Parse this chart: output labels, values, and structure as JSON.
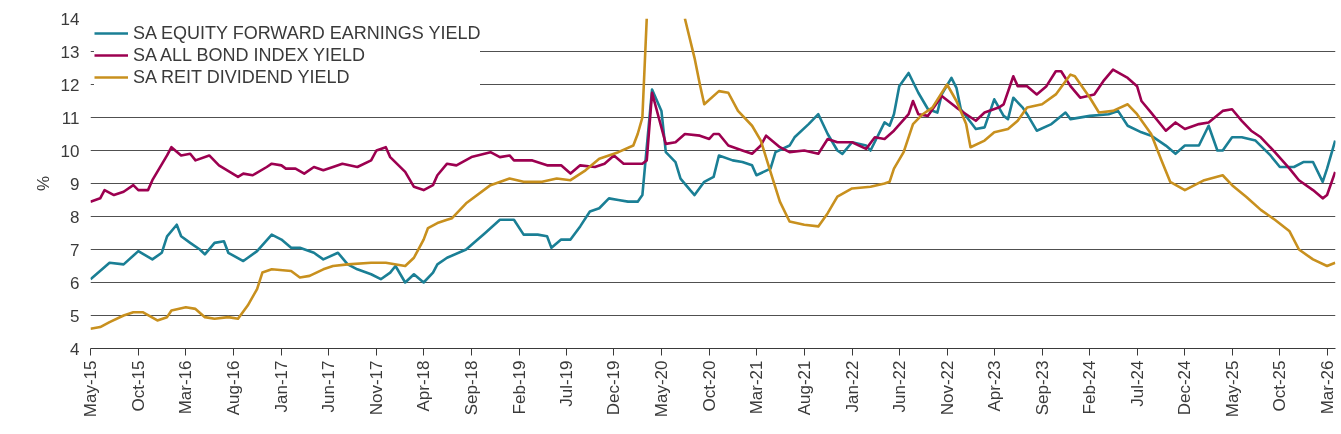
{
  "chart_data": {
    "type": "line",
    "ylabel": "%",
    "ylim": [
      4,
      14
    ],
    "yticks": [
      4,
      5,
      6,
      7,
      8,
      9,
      10,
      11,
      12,
      13,
      14
    ],
    "xlim": [
      "2015-05-01",
      "2026-03-28"
    ],
    "xticks": [
      {
        "value": "2015-05-01",
        "label": "May-15"
      },
      {
        "value": "2015-10-01",
        "label": "Oct-15"
      },
      {
        "value": "2016-03-01",
        "label": "Mar-16"
      },
      {
        "value": "2016-08-01",
        "label": "Aug-16"
      },
      {
        "value": "2017-01-01",
        "label": "Jan-17"
      },
      {
        "value": "2017-06-01",
        "label": "Jun-17"
      },
      {
        "value": "2017-11-01",
        "label": "Nov-17"
      },
      {
        "value": "2018-04-01",
        "label": "Apr-18"
      },
      {
        "value": "2018-09-01",
        "label": "Sep-18"
      },
      {
        "value": "2019-02-01",
        "label": "Feb-19"
      },
      {
        "value": "2019-07-01",
        "label": "Jul-19"
      },
      {
        "value": "2019-12-01",
        "label": "Dec-19"
      },
      {
        "value": "2020-05-01",
        "label": "May-20"
      },
      {
        "value": "2020-10-01",
        "label": "Oct-20"
      },
      {
        "value": "2021-03-01",
        "label": "Mar-21"
      },
      {
        "value": "2021-08-01",
        "label": "Aug-21"
      },
      {
        "value": "2022-01-01",
        "label": "Jan-22"
      },
      {
        "value": "2022-06-01",
        "label": "Jun-22"
      },
      {
        "value": "2022-11-01",
        "label": "Nov-22"
      },
      {
        "value": "2023-04-01",
        "label": "Apr-23"
      },
      {
        "value": "2023-09-01",
        "label": "Sep-23"
      },
      {
        "value": "2024-02-01",
        "label": "Feb-24"
      },
      {
        "value": "2024-07-01",
        "label": "Jul-24"
      },
      {
        "value": "2024-12-01",
        "label": "Dec-24"
      },
      {
        "value": "2025-05-01",
        "label": "May-25"
      },
      {
        "value": "2025-10-01",
        "label": "Oct-25"
      },
      {
        "value": "2026-03-01",
        "label": "Mar-26"
      }
    ],
    "grid": "y",
    "legend": "top left",
    "series": [
      {
        "name": "SA EQUITY FORWARD EARNINGS YIELD",
        "color": "#1a7f95",
        "x": [
          "2015-05-01",
          "2015-07-01",
          "2015-08-15",
          "2015-10-01",
          "2015-11-15",
          "2015-12-15",
          "2016-01-01",
          "2016-02-01",
          "2016-02-15",
          "2016-03-15",
          "2016-04-15",
          "2016-05-01",
          "2016-06-01",
          "2016-07-01",
          "2016-07-15",
          "2016-09-01",
          "2016-10-15",
          "2016-12-01",
          "2017-01-01",
          "2017-02-01",
          "2017-03-01",
          "2017-04-15",
          "2017-05-15",
          "2017-07-01",
          "2017-08-01",
          "2017-09-01",
          "2017-10-15",
          "2017-11-15",
          "2017-12-15",
          "2018-01-01",
          "2018-02-01",
          "2018-03-01",
          "2018-04-01",
          "2018-05-01",
          "2018-05-15",
          "2018-06-15",
          "2018-08-15",
          "2018-10-15",
          "2018-12-01",
          "2019-01-15",
          "2019-02-15",
          "2019-04-01",
          "2019-05-01",
          "2019-05-15",
          "2019-06-15",
          "2019-07-15",
          "2019-08-15",
          "2019-09-15",
          "2019-10-15",
          "2019-11-15",
          "2019-12-15",
          "2020-01-15",
          "2020-02-15",
          "2020-03-01",
          "2020-03-15",
          "2020-04-01",
          "2020-05-01",
          "2020-05-15",
          "2020-06-15",
          "2020-07-01",
          "2020-08-01",
          "2020-08-15",
          "2020-09-15",
          "2020-10-15",
          "2020-11-01",
          "2020-12-15",
          "2021-01-15",
          "2021-02-15",
          "2021-03-01",
          "2021-04-15",
          "2021-05-01",
          "2021-06-15",
          "2021-07-01",
          "2021-08-15",
          "2021-09-15",
          "2021-10-15",
          "2021-11-15",
          "2021-12-01",
          "2022-01-01",
          "2022-02-15",
          "2022-03-01",
          "2022-04-15",
          "2022-05-01",
          "2022-05-15",
          "2022-06-01",
          "2022-07-01",
          "2022-08-01",
          "2022-09-01",
          "2022-10-01",
          "2022-10-15",
          "2022-11-15",
          "2022-12-01",
          "2022-12-15",
          "2023-02-01",
          "2023-03-01",
          "2023-04-01",
          "2023-05-01",
          "2023-05-15",
          "2023-06-01",
          "2023-07-01",
          "2023-07-15",
          "2023-08-15",
          "2023-10-01",
          "2023-11-15",
          "2023-12-01",
          "2024-02-01",
          "2024-04-01",
          "2024-05-01",
          "2024-06-01",
          "2024-07-15",
          "2024-08-15",
          "2024-10-01",
          "2024-11-01",
          "2024-12-01",
          "2025-01-15",
          "2025-02-15",
          "2025-03-15",
          "2025-04-01",
          "2025-05-01",
          "2025-06-01",
          "2025-07-15",
          "2025-09-01",
          "2025-10-01",
          "2025-11-15",
          "2025-12-15",
          "2026-01-15",
          "2026-02-15",
          "2026-03-01",
          "2026-03-27"
        ],
        "values": [
          6.1,
          6.6,
          6.55,
          6.95,
          6.7,
          6.9,
          7.4,
          7.75,
          7.4,
          7.2,
          7.0,
          6.85,
          7.2,
          7.25,
          6.9,
          6.65,
          6.95,
          7.45,
          7.3,
          7.05,
          7.05,
          6.9,
          6.7,
          6.9,
          6.55,
          6.4,
          6.25,
          6.1,
          6.3,
          6.5,
          6.0,
          6.25,
          6.0,
          6.3,
          6.55,
          6.75,
          7.0,
          7.5,
          7.9,
          7.9,
          7.45,
          7.45,
          7.4,
          7.05,
          7.3,
          7.3,
          7.7,
          8.15,
          8.25,
          8.55,
          8.5,
          8.45,
          8.45,
          8.65,
          10.1,
          11.85,
          11.2,
          9.95,
          9.65,
          9.15,
          8.8,
          8.65,
          9.05,
          9.2,
          9.85,
          9.7,
          9.65,
          9.55,
          9.25,
          9.45,
          9.95,
          10.15,
          10.4,
          10.8,
          11.1,
          10.5,
          10.0,
          9.9,
          10.25,
          10.15,
          10.0,
          10.85,
          10.75,
          11.1,
          11.95,
          12.35,
          11.75,
          11.25,
          11.15,
          11.7,
          12.2,
          11.9,
          11.25,
          10.65,
          10.7,
          11.55,
          11.05,
          10.95,
          11.6,
          11.3,
          11.1,
          10.6,
          10.8,
          11.15,
          10.95,
          11.05,
          11.1,
          11.2,
          10.75,
          10.55,
          10.45,
          10.15,
          9.9,
          10.15,
          10.15,
          10.75,
          10.0,
          10.0,
          10.4,
          10.4,
          10.3,
          9.85,
          9.5,
          9.5,
          9.65,
          9.65,
          9.05,
          9.45,
          10.3
        ]
      },
      {
        "name": "SA ALL BOND INDEX YIELD",
        "color": "#9c0050",
        "x": [
          "2015-05-01",
          "2015-06-01",
          "2015-06-15",
          "2015-07-15",
          "2015-08-15",
          "2015-09-15",
          "2015-10-01",
          "2015-11-01",
          "2015-11-15",
          "2016-01-01",
          "2016-01-15",
          "2016-02-15",
          "2016-03-15",
          "2016-04-01",
          "2016-05-15",
          "2016-06-15",
          "2016-08-15",
          "2016-09-01",
          "2016-10-01",
          "2016-11-15",
          "2016-12-01",
          "2017-01-01",
          "2017-01-15",
          "2017-02-15",
          "2017-03-15",
          "2017-04-15",
          "2017-05-15",
          "2017-06-15",
          "2017-07-15",
          "2017-09-01",
          "2017-10-15",
          "2017-11-01",
          "2017-12-01",
          "2017-12-15",
          "2018-02-01",
          "2018-03-01",
          "2018-04-01",
          "2018-05-01",
          "2018-05-15",
          "2018-06-15",
          "2018-07-15",
          "2018-09-01",
          "2018-11-01",
          "2018-12-01",
          "2019-01-01",
          "2019-01-15",
          "2019-03-15",
          "2019-05-01",
          "2019-06-15",
          "2019-07-15",
          "2019-08-15",
          "2019-10-01",
          "2019-11-01",
          "2019-12-01",
          "2020-01-01",
          "2020-03-01",
          "2020-03-15",
          "2020-04-01",
          "2020-05-15",
          "2020-06-15",
          "2020-07-15",
          "2020-09-01",
          "2020-10-01",
          "2020-10-15",
          "2020-11-01",
          "2020-12-01",
          "2021-01-15",
          "2021-02-15",
          "2021-03-15",
          "2021-04-01",
          "2021-05-15",
          "2021-06-15",
          "2021-08-01",
          "2021-09-15",
          "2021-10-15",
          "2021-11-15",
          "2022-01-01",
          "2022-02-15",
          "2022-03-15",
          "2022-04-15",
          "2022-05-15",
          "2022-07-01",
          "2022-07-15",
          "2022-08-01",
          "2022-09-01",
          "2022-10-15",
          "2022-12-01",
          "2023-01-01",
          "2023-02-01",
          "2023-03-01",
          "2023-04-15",
          "2023-05-01",
          "2023-06-01",
          "2023-06-15",
          "2023-07-15",
          "2023-08-15",
          "2023-09-15",
          "2023-10-15",
          "2023-11-01",
          "2023-12-01",
          "2024-01-01",
          "2024-02-15",
          "2024-03-15",
          "2024-04-15",
          "2024-06-01",
          "2024-07-01",
          "2024-07-15",
          "2024-08-15",
          "2024-10-01",
          "2024-11-01",
          "2024-12-01",
          "2025-01-15",
          "2025-02-15",
          "2025-04-01",
          "2025-05-01",
          "2025-06-01",
          "2025-07-01",
          "2025-08-01",
          "2025-09-15",
          "2025-11-01",
          "2025-12-01",
          "2026-01-15",
          "2026-02-15",
          "2026-03-01",
          "2026-03-27"
        ],
        "values": [
          8.45,
          8.55,
          8.8,
          8.65,
          8.75,
          8.95,
          8.8,
          8.8,
          9.1,
          9.85,
          10.1,
          9.85,
          9.9,
          9.7,
          9.85,
          9.55,
          9.2,
          9.3,
          9.25,
          9.5,
          9.6,
          9.55,
          9.45,
          9.45,
          9.3,
          9.5,
          9.4,
          9.5,
          9.6,
          9.5,
          9.7,
          10.0,
          10.1,
          9.8,
          9.35,
          8.9,
          8.8,
          8.95,
          9.25,
          9.6,
          9.55,
          9.8,
          9.95,
          9.8,
          9.85,
          9.7,
          9.7,
          9.55,
          9.55,
          9.3,
          9.55,
          9.5,
          9.6,
          9.85,
          9.6,
          9.6,
          9.7,
          11.75,
          10.2,
          10.25,
          10.5,
          10.45,
          10.35,
          10.5,
          10.5,
          10.15,
          10.0,
          9.9,
          10.15,
          10.45,
          10.1,
          9.95,
          10.0,
          9.9,
          10.35,
          10.25,
          10.25,
          10.05,
          10.4,
          10.35,
          10.6,
          11.1,
          11.5,
          11.1,
          11.05,
          11.65,
          11.3,
          11.1,
          10.9,
          11.15,
          11.3,
          11.4,
          12.25,
          11.95,
          11.95,
          11.7,
          11.95,
          12.4,
          12.4,
          11.95,
          11.6,
          11.7,
          12.1,
          12.45,
          12.2,
          11.95,
          11.5,
          11.15,
          10.6,
          10.85,
          10.65,
          10.8,
          10.85,
          11.2,
          11.25,
          10.9,
          10.6,
          10.4,
          9.95,
          9.45,
          9.1,
          8.8,
          8.55,
          8.65,
          9.35
        ]
      },
      {
        "name": "SA REIT DIVIDEND YIELD",
        "color": "#c8901e",
        "x": [
          "2015-05-01",
          "2015-06-01",
          "2015-07-01",
          "2015-08-15",
          "2015-09-15",
          "2015-10-15",
          "2015-12-01",
          "2016-01-01",
          "2016-01-15",
          "2016-03-01",
          "2016-04-01",
          "2016-05-01",
          "2016-06-01",
          "2016-07-15",
          "2016-08-15",
          "2016-09-15",
          "2016-10-15",
          "2016-11-01",
          "2016-12-01",
          "2017-02-01",
          "2017-03-01",
          "2017-04-01",
          "2017-05-15",
          "2017-06-15",
          "2017-08-01",
          "2017-10-15",
          "2017-12-01",
          "2018-02-01",
          "2018-03-01",
          "2018-04-01",
          "2018-04-15",
          "2018-05-15",
          "2018-06-15",
          "2018-07-01",
          "2018-08-15",
          "2018-11-01",
          "2019-01-01",
          "2019-02-15",
          "2019-04-15",
          "2019-06-01",
          "2019-07-15",
          "2019-09-01",
          "2019-10-15",
          "2019-12-15",
          "2020-02-01",
          "2020-02-15",
          "2020-03-01",
          "2020-03-15",
          "2020-05-01",
          "2020-07-15",
          "2020-08-15",
          "2020-09-01",
          "2020-09-15",
          "2020-11-01",
          "2020-12-01",
          "2021-01-01",
          "2021-02-15",
          "2021-03-15",
          "2021-04-15",
          "2021-05-15",
          "2021-06-15",
          "2021-08-01",
          "2021-09-15",
          "2021-10-15",
          "2021-11-15",
          "2022-01-01",
          "2022-03-01",
          "2022-04-15",
          "2022-05-01",
          "2022-05-15",
          "2022-06-15",
          "2022-07-15",
          "2022-08-15",
          "2022-09-15",
          "2022-11-01",
          "2022-12-01",
          "2023-01-01",
          "2023-01-15",
          "2023-03-01",
          "2023-04-01",
          "2023-05-15",
          "2023-06-15",
          "2023-07-15",
          "2023-09-01",
          "2023-10-15",
          "2023-12-01",
          "2023-12-15",
          "2024-02-01",
          "2024-03-01",
          "2024-04-15",
          "2024-06-01",
          "2024-07-01",
          "2024-08-15",
          "2024-09-15",
          "2024-10-15",
          "2024-12-01",
          "2025-02-01",
          "2025-04-01",
          "2025-05-01",
          "2025-06-15",
          "2025-08-01",
          "2025-09-15",
          "2025-11-01",
          "2025-12-01",
          "2026-01-15",
          "2026-03-01",
          "2026-03-27"
        ],
        "values": [
          4.6,
          4.65,
          4.8,
          5.0,
          5.1,
          5.1,
          4.85,
          4.95,
          5.15,
          5.25,
          5.2,
          4.95,
          4.9,
          4.95,
          4.9,
          5.3,
          5.8,
          6.3,
          6.4,
          6.35,
          6.15,
          6.2,
          6.4,
          6.5,
          6.55,
          6.6,
          6.6,
          6.5,
          6.75,
          7.3,
          7.65,
          7.8,
          7.9,
          7.95,
          8.4,
          8.95,
          9.15,
          9.05,
          9.05,
          9.15,
          9.1,
          9.4,
          9.75,
          9.95,
          10.15,
          10.5,
          11.0,
          14,
          null,
          14,
          12.8,
          12.0,
          11.4,
          11.8,
          11.75,
          11.2,
          10.75,
          10.3,
          9.35,
          8.45,
          7.85,
          7.75,
          7.7,
          8.1,
          8.6,
          8.85,
          8.9,
          9.0,
          9.05,
          9.45,
          9.95,
          10.8,
          11.1,
          11.3,
          12.0,
          11.5,
          10.8,
          10.1,
          10.3,
          10.55,
          10.65,
          10.9,
          11.3,
          11.4,
          11.7,
          12.3,
          12.25,
          11.6,
          11.15,
          11.2,
          11.4,
          11.1,
          10.5,
          9.75,
          9.05,
          8.8,
          9.1,
          9.25,
          8.95,
          8.6,
          8.2,
          7.9,
          7.55,
          7.0,
          6.7,
          6.5,
          6.6
        ]
      }
    ]
  }
}
